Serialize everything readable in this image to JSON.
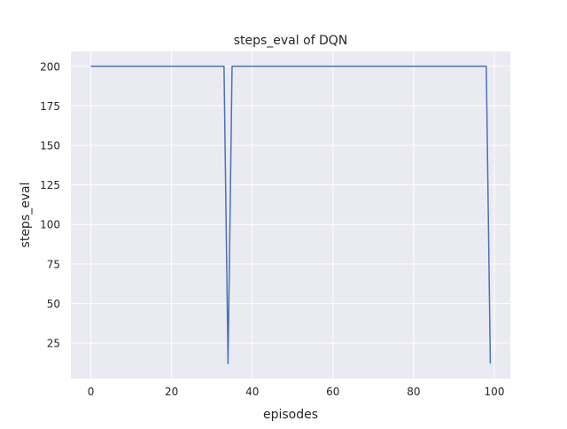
{
  "chart_data": {
    "type": "line",
    "title": "steps_eval of DQN",
    "xlabel": "episodes",
    "ylabel": "steps_eval",
    "xlim": [
      -4.95,
      103.95
    ],
    "ylim": [
      2.6,
      209.4
    ],
    "xticks": [
      0,
      20,
      40,
      60,
      80,
      100
    ],
    "yticks": [
      25,
      50,
      75,
      100,
      125,
      150,
      175,
      200
    ],
    "grid": true,
    "background": "#eaeaf2",
    "line_color": "#4c72b0",
    "series": [
      {
        "points": [
          [
            0,
            200
          ],
          [
            33,
            200
          ],
          [
            34,
            12
          ],
          [
            35,
            200
          ],
          [
            98,
            200
          ],
          [
            99,
            12
          ]
        ]
      }
    ]
  }
}
